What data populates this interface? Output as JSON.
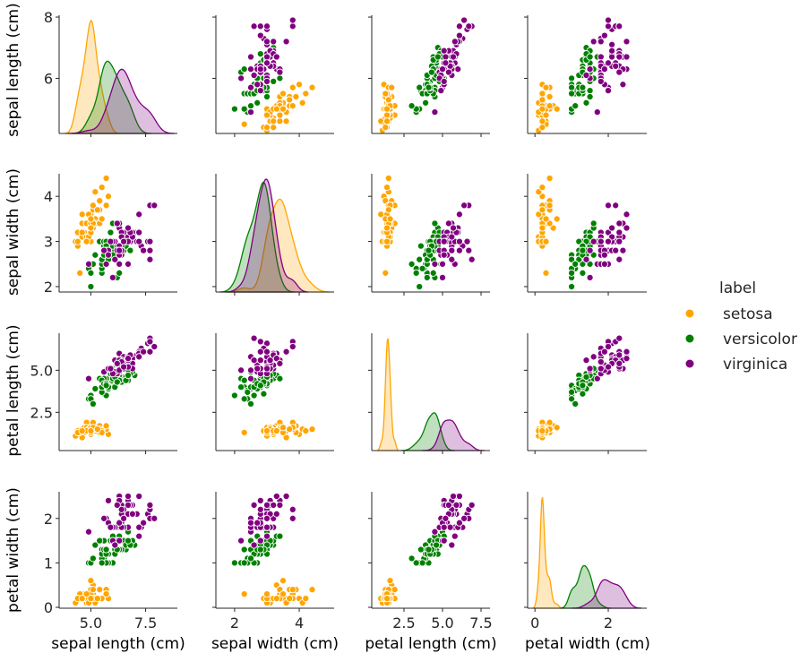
{
  "chart_data": {
    "type": "scatter",
    "kind": "pairplot",
    "variables": [
      "sepal length (cm)",
      "sepal width (cm)",
      "petal length (cm)",
      "petal width (cm)"
    ],
    "diagonal": "kde",
    "hue": "label",
    "legend": {
      "title": "label",
      "placement": "right",
      "entries": [
        {
          "name": "setosa",
          "color": "#FFA500"
        },
        {
          "name": "versicolor",
          "color": "#008000"
        },
        {
          "name": "virginica",
          "color": "#800080"
        }
      ]
    },
    "axes": [
      {
        "label": "sepal length (cm)",
        "lim": [
          3.55,
          8.95
        ],
        "ylim": [
          4.2,
          8.06
        ],
        "xticks": [
          5.0,
          7.5
        ],
        "xtick_labels": [
          "5.0",
          "7.5"
        ],
        "yticks": [
          6,
          8
        ],
        "ytick_labels": [
          "6",
          "8"
        ]
      },
      {
        "label": "sepal width (cm)",
        "lim": [
          1.42,
          5.08
        ],
        "ylim": [
          1.88,
          4.5
        ],
        "xticks": [
          2,
          4
        ],
        "xtick_labels": [
          "2",
          "4"
        ],
        "yticks": [
          2,
          3,
          4
        ],
        "ytick_labels": [
          "2",
          "3",
          "4"
        ]
      },
      {
        "label": "petal length (cm)",
        "lim": [
          0.41,
          8.08
        ],
        "ylim": [
          0.23,
          7.2
        ],
        "xticks": [
          2.5,
          5.0,
          7.5
        ],
        "xtick_labels": [
          "2.5",
          "5.0",
          "7.5"
        ],
        "yticks": [
          2.5,
          5.0
        ],
        "ytick_labels": [
          "2.5",
          "5.0"
        ]
      },
      {
        "label": "petal width (cm)",
        "lim": [
          -0.2,
          3.05
        ],
        "ylim": [
          -0.02,
          2.6
        ],
        "xticks": [
          0,
          2
        ],
        "xtick_labels": [
          "0",
          "2"
        ],
        "yticks": [
          0,
          1,
          2
        ],
        "ytick_labels": [
          "0",
          "1",
          "2"
        ]
      }
    ],
    "series": [
      {
        "name": "setosa",
        "color": "#FFA500",
        "points": [
          [
            5.1,
            3.5,
            1.4,
            0.2
          ],
          [
            4.9,
            3.0,
            1.4,
            0.2
          ],
          [
            4.7,
            3.2,
            1.3,
            0.2
          ],
          [
            4.6,
            3.1,
            1.5,
            0.2
          ],
          [
            5.0,
            3.6,
            1.4,
            0.2
          ],
          [
            5.4,
            3.9,
            1.7,
            0.4
          ],
          [
            4.6,
            3.4,
            1.4,
            0.3
          ],
          [
            5.0,
            3.4,
            1.5,
            0.2
          ],
          [
            4.4,
            2.9,
            1.4,
            0.2
          ],
          [
            4.9,
            3.1,
            1.5,
            0.1
          ],
          [
            5.4,
            3.7,
            1.5,
            0.2
          ],
          [
            4.8,
            3.4,
            1.6,
            0.2
          ],
          [
            4.8,
            3.0,
            1.4,
            0.1
          ],
          [
            4.3,
            3.0,
            1.1,
            0.1
          ],
          [
            5.8,
            4.0,
            1.2,
            0.2
          ],
          [
            5.7,
            4.4,
            1.5,
            0.4
          ],
          [
            5.4,
            3.9,
            1.3,
            0.4
          ],
          [
            5.1,
            3.5,
            1.4,
            0.3
          ],
          [
            5.7,
            3.8,
            1.7,
            0.3
          ],
          [
            5.1,
            3.8,
            1.5,
            0.3
          ],
          [
            5.4,
            3.4,
            1.7,
            0.2
          ],
          [
            5.1,
            3.7,
            1.5,
            0.4
          ],
          [
            4.6,
            3.6,
            1.0,
            0.2
          ],
          [
            5.1,
            3.3,
            1.7,
            0.5
          ],
          [
            4.8,
            3.4,
            1.9,
            0.2
          ],
          [
            5.0,
            3.0,
            1.6,
            0.2
          ],
          [
            5.0,
            3.4,
            1.6,
            0.4
          ],
          [
            5.2,
            3.5,
            1.5,
            0.2
          ],
          [
            5.2,
            3.4,
            1.4,
            0.2
          ],
          [
            4.7,
            3.2,
            1.6,
            0.2
          ],
          [
            4.8,
            3.1,
            1.6,
            0.2
          ],
          [
            5.4,
            3.4,
            1.5,
            0.4
          ],
          [
            5.2,
            4.1,
            1.5,
            0.1
          ],
          [
            5.5,
            4.2,
            1.4,
            0.2
          ],
          [
            4.9,
            3.1,
            1.5,
            0.2
          ],
          [
            5.0,
            3.2,
            1.2,
            0.2
          ],
          [
            5.5,
            3.5,
            1.3,
            0.2
          ],
          [
            4.9,
            3.6,
            1.4,
            0.1
          ],
          [
            4.4,
            3.0,
            1.3,
            0.2
          ],
          [
            5.1,
            3.4,
            1.5,
            0.2
          ],
          [
            5.0,
            3.5,
            1.3,
            0.3
          ],
          [
            4.5,
            2.3,
            1.3,
            0.3
          ],
          [
            4.4,
            3.2,
            1.3,
            0.2
          ],
          [
            5.0,
            3.5,
            1.6,
            0.6
          ],
          [
            5.1,
            3.8,
            1.9,
            0.4
          ],
          [
            4.8,
            3.0,
            1.4,
            0.3
          ],
          [
            5.1,
            3.8,
            1.6,
            0.2
          ],
          [
            4.6,
            3.2,
            1.4,
            0.2
          ],
          [
            5.3,
            3.7,
            1.5,
            0.2
          ],
          [
            5.0,
            3.3,
            1.4,
            0.2
          ]
        ]
      },
      {
        "name": "versicolor",
        "color": "#008000",
        "points": [
          [
            7.0,
            3.2,
            4.7,
            1.4
          ],
          [
            6.4,
            3.2,
            4.5,
            1.5
          ],
          [
            6.9,
            3.1,
            4.9,
            1.5
          ],
          [
            5.5,
            2.3,
            4.0,
            1.3
          ],
          [
            6.5,
            2.8,
            4.6,
            1.5
          ],
          [
            5.7,
            2.8,
            4.5,
            1.3
          ],
          [
            6.3,
            3.3,
            4.7,
            1.6
          ],
          [
            4.9,
            2.4,
            3.3,
            1.0
          ],
          [
            6.6,
            2.9,
            4.6,
            1.3
          ],
          [
            5.2,
            2.7,
            3.9,
            1.4
          ],
          [
            5.0,
            2.0,
            3.5,
            1.0
          ],
          [
            5.9,
            3.0,
            4.2,
            1.5
          ],
          [
            6.0,
            2.2,
            4.0,
            1.0
          ],
          [
            6.1,
            2.9,
            4.7,
            1.4
          ],
          [
            5.6,
            2.9,
            3.6,
            1.3
          ],
          [
            6.7,
            3.1,
            4.4,
            1.4
          ],
          [
            5.6,
            3.0,
            4.5,
            1.5
          ],
          [
            5.8,
            2.7,
            4.1,
            1.0
          ],
          [
            6.2,
            2.2,
            4.5,
            1.5
          ],
          [
            5.6,
            2.5,
            3.9,
            1.1
          ],
          [
            5.9,
            3.2,
            4.8,
            1.8
          ],
          [
            6.1,
            2.8,
            4.0,
            1.3
          ],
          [
            6.3,
            2.5,
            4.9,
            1.5
          ],
          [
            6.1,
            2.8,
            4.7,
            1.2
          ],
          [
            6.4,
            2.9,
            4.3,
            1.3
          ],
          [
            6.6,
            3.0,
            4.4,
            1.4
          ],
          [
            6.8,
            2.8,
            4.8,
            1.4
          ],
          [
            6.7,
            3.0,
            5.0,
            1.7
          ],
          [
            6.0,
            2.9,
            4.5,
            1.5
          ],
          [
            5.7,
            2.6,
            3.5,
            1.0
          ],
          [
            5.5,
            2.4,
            3.8,
            1.1
          ],
          [
            5.5,
            2.4,
            3.7,
            1.0
          ],
          [
            5.8,
            2.7,
            3.9,
            1.2
          ],
          [
            6.0,
            2.7,
            5.1,
            1.6
          ],
          [
            5.4,
            3.0,
            4.5,
            1.5
          ],
          [
            6.0,
            3.4,
            4.5,
            1.6
          ],
          [
            6.7,
            3.1,
            4.7,
            1.5
          ],
          [
            6.3,
            2.3,
            4.4,
            1.3
          ],
          [
            5.6,
            3.0,
            4.1,
            1.3
          ],
          [
            5.5,
            2.5,
            4.0,
            1.3
          ],
          [
            5.5,
            2.6,
            4.4,
            1.2
          ],
          [
            6.1,
            3.0,
            4.6,
            1.4
          ],
          [
            5.8,
            2.6,
            4.0,
            1.2
          ],
          [
            5.0,
            2.3,
            3.3,
            1.0
          ],
          [
            5.6,
            2.7,
            4.2,
            1.3
          ],
          [
            5.7,
            3.0,
            4.2,
            1.2
          ],
          [
            5.7,
            2.9,
            4.2,
            1.3
          ],
          [
            6.2,
            2.9,
            4.3,
            1.3
          ],
          [
            5.1,
            2.5,
            3.0,
            1.1
          ],
          [
            5.7,
            2.8,
            4.1,
            1.3
          ]
        ]
      },
      {
        "name": "virginica",
        "color": "#800080",
        "points": [
          [
            6.3,
            3.3,
            6.0,
            2.5
          ],
          [
            5.8,
            2.7,
            5.1,
            1.9
          ],
          [
            7.1,
            3.0,
            5.9,
            2.1
          ],
          [
            6.3,
            2.9,
            5.6,
            1.8
          ],
          [
            6.5,
            3.0,
            5.8,
            2.2
          ],
          [
            7.6,
            3.0,
            6.6,
            2.1
          ],
          [
            4.9,
            2.5,
            4.5,
            1.7
          ],
          [
            7.3,
            2.9,
            6.3,
            1.8
          ],
          [
            6.7,
            2.5,
            5.8,
            1.8
          ],
          [
            7.2,
            3.6,
            6.1,
            2.5
          ],
          [
            6.5,
            3.2,
            5.1,
            2.0
          ],
          [
            6.4,
            2.7,
            5.3,
            1.9
          ],
          [
            6.8,
            3.0,
            5.5,
            2.1
          ],
          [
            5.7,
            2.5,
            5.0,
            2.0
          ],
          [
            5.8,
            2.8,
            5.1,
            2.4
          ],
          [
            6.4,
            3.2,
            5.3,
            2.3
          ],
          [
            6.5,
            3.0,
            5.5,
            1.8
          ],
          [
            7.7,
            3.8,
            6.7,
            2.2
          ],
          [
            7.7,
            2.6,
            6.9,
            2.3
          ],
          [
            6.0,
            2.2,
            5.0,
            1.5
          ],
          [
            6.9,
            3.2,
            5.7,
            2.3
          ],
          [
            5.6,
            2.8,
            4.9,
            2.0
          ],
          [
            7.7,
            2.8,
            6.7,
            2.0
          ],
          [
            6.3,
            2.7,
            4.9,
            1.8
          ],
          [
            6.7,
            3.3,
            5.7,
            2.1
          ],
          [
            7.2,
            3.2,
            6.0,
            1.8
          ],
          [
            6.2,
            2.8,
            4.8,
            1.8
          ],
          [
            6.1,
            3.0,
            4.9,
            1.8
          ],
          [
            6.4,
            2.8,
            5.6,
            2.1
          ],
          [
            7.2,
            3.0,
            5.8,
            1.6
          ],
          [
            7.4,
            2.8,
            6.1,
            1.9
          ],
          [
            7.9,
            3.8,
            6.4,
            2.0
          ],
          [
            6.4,
            2.8,
            5.6,
            2.2
          ],
          [
            6.3,
            2.8,
            5.1,
            1.5
          ],
          [
            6.1,
            2.6,
            5.6,
            1.4
          ],
          [
            7.7,
            3.0,
            6.1,
            2.3
          ],
          [
            6.3,
            3.4,
            5.6,
            2.4
          ],
          [
            6.4,
            3.1,
            5.5,
            1.8
          ],
          [
            6.0,
            3.0,
            4.8,
            1.8
          ],
          [
            6.9,
            3.1,
            5.4,
            2.1
          ],
          [
            6.7,
            3.1,
            5.6,
            2.4
          ],
          [
            6.9,
            3.1,
            5.1,
            2.3
          ],
          [
            5.8,
            2.7,
            5.1,
            1.9
          ],
          [
            6.8,
            3.2,
            5.9,
            2.3
          ],
          [
            6.7,
            3.3,
            5.7,
            2.5
          ],
          [
            6.7,
            3.0,
            5.2,
            2.3
          ],
          [
            6.3,
            2.5,
            5.0,
            1.9
          ],
          [
            6.5,
            3.0,
            5.2,
            2.0
          ],
          [
            6.2,
            3.4,
            5.4,
            2.3
          ],
          [
            5.9,
            3.0,
            5.1,
            1.8
          ]
        ]
      }
    ]
  }
}
